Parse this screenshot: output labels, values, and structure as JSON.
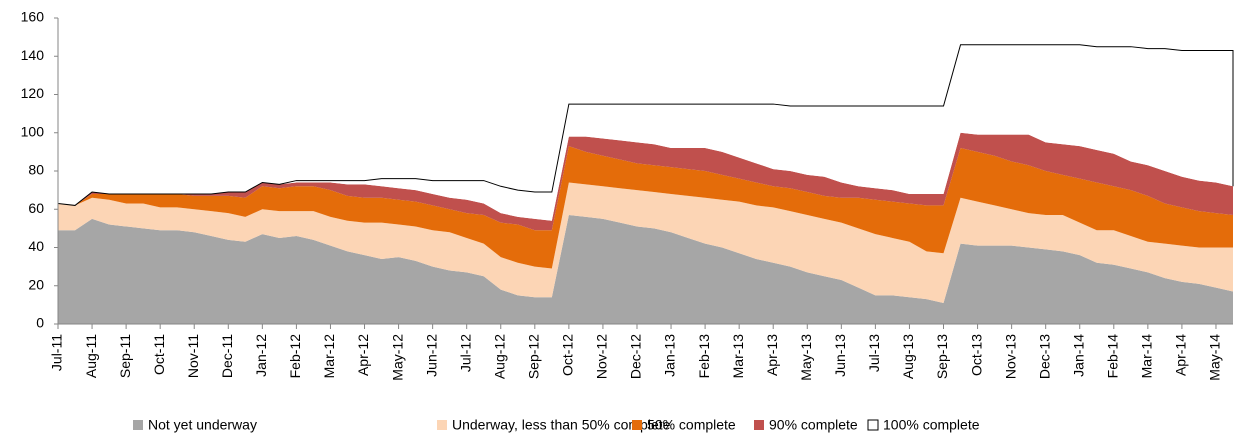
{
  "chart_data": {
    "type": "stacked_area",
    "categories": [
      "Jul-11",
      null,
      "Aug-11",
      null,
      "Sep-11",
      null,
      "Oct-11",
      null,
      "Nov-11",
      null,
      "Dec-11",
      null,
      "Jan-12",
      null,
      "Feb-12",
      null,
      "Mar-12",
      null,
      "Apr-12",
      null,
      "May-12",
      null,
      "Jun-12",
      null,
      "Jul-12",
      null,
      "Aug-12",
      null,
      "Sep-12",
      null,
      "Oct-12",
      null,
      "Nov-12",
      null,
      "Dec-12",
      null,
      "Jan-13",
      null,
      "Feb-13",
      null,
      "Mar-13",
      null,
      "Apr-13",
      null,
      "May-13",
      null,
      "Jun-13",
      null,
      "Jul-13",
      null,
      "Aug-13",
      null,
      "Sep-13",
      null,
      "Oct-13",
      null,
      "Nov-13",
      null,
      "Dec-13",
      null,
      "Jan-14",
      null,
      "Feb-14",
      null,
      "Mar-14",
      null,
      "Apr-14",
      null,
      "May-14",
      null
    ],
    "series": [
      {
        "name": "Not yet underway",
        "color": "#a6a6a6",
        "values": [
          49,
          49,
          55,
          52,
          51,
          50,
          49,
          49,
          48,
          46,
          44,
          43,
          47,
          45,
          46,
          44,
          41,
          38,
          36,
          34,
          35,
          33,
          30,
          28,
          27,
          25,
          18,
          15,
          14,
          14,
          57,
          56,
          55,
          53,
          51,
          50,
          48,
          45,
          42,
          40,
          37,
          34,
          32,
          30,
          27,
          25,
          23,
          19,
          15,
          15,
          14,
          13,
          11,
          42,
          41,
          41,
          41,
          40,
          39,
          38,
          36,
          32,
          31,
          29,
          27,
          24,
          22,
          21,
          19,
          17
        ]
      },
      {
        "name": "Underway, less than 50% complete",
        "color": "#fcd5b5",
        "values": [
          14,
          13,
          11,
          13,
          12,
          13,
          12,
          12,
          12,
          13,
          14,
          13,
          13,
          14,
          13,
          15,
          15,
          16,
          17,
          19,
          17,
          18,
          19,
          20,
          18,
          17,
          17,
          17,
          16,
          15,
          17,
          17,
          17,
          18,
          19,
          19,
          20,
          22,
          24,
          25,
          27,
          28,
          29,
          29,
          30,
          30,
          30,
          31,
          32,
          30,
          29,
          25,
          26,
          24,
          23,
          21,
          19,
          18,
          18,
          19,
          17,
          17,
          18,
          17,
          16,
          18,
          19,
          19,
          21,
          23
        ]
      },
      {
        "name": "50% complete",
        "color": "#e46c0a",
        "values": [
          0,
          0,
          2,
          3,
          5,
          5,
          7,
          7,
          7,
          8,
          9,
          10,
          12,
          12,
          13,
          13,
          14,
          13,
          13,
          13,
          13,
          13,
          13,
          12,
          13,
          15,
          18,
          20,
          19,
          20,
          19,
          17,
          16,
          15,
          14,
          14,
          14,
          14,
          14,
          13,
          12,
          12,
          11,
          12,
          12,
          12,
          13,
          16,
          18,
          19,
          20,
          24,
          25,
          26,
          26,
          26,
          25,
          25,
          23,
          21,
          23,
          25,
          23,
          24,
          24,
          21,
          20,
          19,
          18,
          17
        ]
      },
      {
        "name": "90% complete",
        "color": "#c0504d",
        "values": [
          0,
          0,
          1,
          0,
          0,
          0,
          0,
          0,
          1,
          1,
          2,
          3,
          2,
          2,
          2,
          2,
          4,
          6,
          7,
          6,
          6,
          6,
          6,
          6,
          7,
          6,
          5,
          4,
          6,
          5,
          5,
          8,
          9,
          10,
          11,
          11,
          10,
          11,
          12,
          12,
          11,
          10,
          9,
          9,
          9,
          10,
          8,
          6,
          6,
          6,
          5,
          6,
          6,
          8,
          9,
          11,
          14,
          16,
          15,
          16,
          17,
          17,
          17,
          15,
          16,
          17,
          16,
          16,
          16,
          15
        ]
      },
      {
        "name": "100% complete",
        "color": "#ffffff",
        "values": [
          0,
          0,
          0,
          0,
          0,
          0,
          0,
          0,
          0,
          0,
          0,
          0,
          0,
          0,
          1,
          1,
          1,
          2,
          2,
          4,
          5,
          6,
          7,
          9,
          10,
          12,
          14,
          14,
          14,
          15,
          17,
          17,
          18,
          19,
          20,
          21,
          23,
          23,
          23,
          25,
          28,
          31,
          34,
          34,
          36,
          37,
          40,
          42,
          43,
          44,
          46,
          46,
          46,
          46,
          47,
          47,
          47,
          47,
          51,
          52,
          53,
          54,
          56,
          60,
          61,
          64,
          66,
          68,
          69,
          71
        ]
      }
    ],
    "ylim": [
      0,
      160
    ],
    "yticks": [
      0,
      20,
      40,
      60,
      80,
      100,
      120,
      140,
      160
    ],
    "grid": false
  }
}
